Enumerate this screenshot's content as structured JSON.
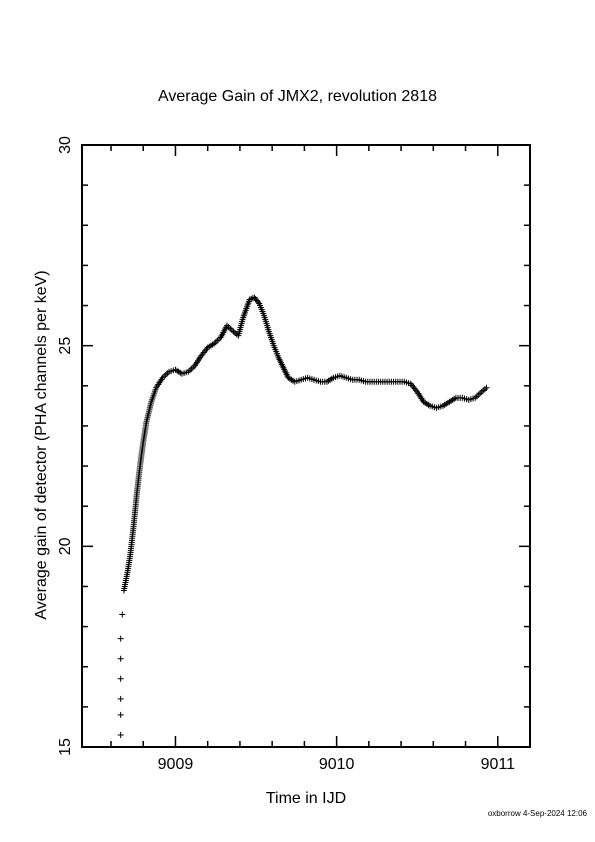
{
  "chart_data": {
    "type": "scatter",
    "title": "Average Gain of JMX2, revolution 2818",
    "xlabel": "Time in IJD",
    "ylabel": "Average gain of detector (PHA channels per keV)",
    "xlim": [
      9008.42,
      9011.2
    ],
    "ylim": [
      15,
      30
    ],
    "xticks": [
      9009,
      9010,
      9011
    ],
    "yticks": [
      15,
      20,
      25,
      30
    ],
    "marker": "plus",
    "grid": false,
    "series": [
      {
        "color": "#000000",
        "points": [
          [
            9008.66,
            15.3
          ],
          [
            9008.66,
            15.8
          ],
          [
            9008.66,
            16.2
          ],
          [
            9008.66,
            16.7
          ],
          [
            9008.66,
            17.2
          ],
          [
            9008.66,
            17.7
          ],
          [
            9008.67,
            18.3
          ],
          [
            9008.68,
            18.9
          ],
          [
            9008.7,
            19.3
          ],
          [
            9008.72,
            19.8
          ],
          [
            9008.74,
            20.5
          ],
          [
            9008.76,
            21.3
          ],
          [
            9008.78,
            22.0
          ],
          [
            9008.8,
            22.6
          ],
          [
            9008.82,
            23.1
          ],
          [
            9008.85,
            23.6
          ],
          [
            9008.88,
            23.95
          ],
          [
            9008.92,
            24.2
          ],
          [
            9008.96,
            24.35
          ],
          [
            9009.0,
            24.4
          ],
          [
            9009.04,
            24.3
          ],
          [
            9009.08,
            24.35
          ],
          [
            9009.12,
            24.5
          ],
          [
            9009.16,
            24.75
          ],
          [
            9009.2,
            24.95
          ],
          [
            9009.24,
            25.05
          ],
          [
            9009.28,
            25.2
          ],
          [
            9009.32,
            25.5
          ],
          [
            9009.36,
            25.35
          ],
          [
            9009.39,
            25.25
          ],
          [
            9009.42,
            25.7
          ],
          [
            9009.46,
            26.15
          ],
          [
            9009.49,
            26.2
          ],
          [
            9009.52,
            26.05
          ],
          [
            9009.55,
            25.75
          ],
          [
            9009.58,
            25.35
          ],
          [
            9009.61,
            25.0
          ],
          [
            9009.64,
            24.7
          ],
          [
            9009.67,
            24.45
          ],
          [
            9009.7,
            24.2
          ],
          [
            9009.74,
            24.1
          ],
          [
            9009.78,
            24.15
          ],
          [
            9009.82,
            24.2
          ],
          [
            9009.86,
            24.15
          ],
          [
            9009.9,
            24.1
          ],
          [
            9009.94,
            24.1
          ],
          [
            9009.98,
            24.2
          ],
          [
            9010.02,
            24.25
          ],
          [
            9010.06,
            24.2
          ],
          [
            9010.1,
            24.15
          ],
          [
            9010.14,
            24.15
          ],
          [
            9010.18,
            24.1
          ],
          [
            9010.22,
            24.1
          ],
          [
            9010.26,
            24.1
          ],
          [
            9010.3,
            24.1
          ],
          [
            9010.34,
            24.1
          ],
          [
            9010.38,
            24.1
          ],
          [
            9010.42,
            24.1
          ],
          [
            9010.46,
            24.05
          ],
          [
            9010.5,
            23.85
          ],
          [
            9010.54,
            23.6
          ],
          [
            9010.58,
            23.5
          ],
          [
            9010.62,
            23.45
          ],
          [
            9010.66,
            23.5
          ],
          [
            9010.7,
            23.6
          ],
          [
            9010.74,
            23.7
          ],
          [
            9010.78,
            23.7
          ],
          [
            9010.82,
            23.65
          ],
          [
            9010.86,
            23.7
          ],
          [
            9010.9,
            23.85
          ],
          [
            9010.93,
            23.95
          ]
        ]
      }
    ]
  },
  "footer": "oxborrow  4-Sep-2024 12:06"
}
